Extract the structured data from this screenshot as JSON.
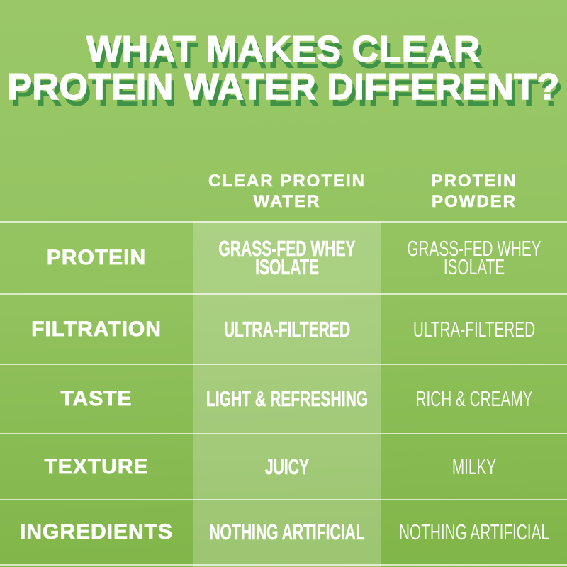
{
  "title": {
    "line1": "WHAT MAKES CLEAR",
    "line2": "PROTEIN WATER DIFFERENT?"
  },
  "table": {
    "column_headers": [
      {
        "line1": "CLEAR PROTEIN",
        "line2": "WATER"
      },
      {
        "line1": "PROTEIN",
        "line2": "POWDER"
      }
    ],
    "rows": [
      {
        "attribute": "PROTEIN",
        "clear_protein_water": "GRASS-FED WHEY ISOLATE",
        "protein_powder": "GRASS-FED WHEY ISOLATE"
      },
      {
        "attribute": "FILTRATION",
        "clear_protein_water": "ULTRA-FILTERED",
        "protein_powder": "ULTRA-FILTERED"
      },
      {
        "attribute": "TASTE",
        "clear_protein_water": "LIGHT & REFRESHING",
        "protein_powder": "RICH & CREAMY"
      },
      {
        "attribute": "TEXTURE",
        "clear_protein_water": "JUICY",
        "protein_powder": "MILKY"
      },
      {
        "attribute": "INGREDIENTS",
        "clear_protein_water": "NOTHING ARTIFICIAL",
        "protein_powder": "NOTHING ARTIFICIAL"
      }
    ]
  },
  "colors": {
    "bg-top": "#9AC868",
    "bg-bottom": "#80B549",
    "title-shadow": "#3E9347",
    "highlight": "rgba(255,255,255,0.22)",
    "divider": "rgba(255,255,255,0.68)",
    "text": "#FFFFFF"
  },
  "chart_data": {
    "type": "table",
    "title": "WHAT MAKES CLEAR PROTEIN WATER DIFFERENT?",
    "columns": [
      "",
      "CLEAR PROTEIN WATER",
      "PROTEIN POWDER"
    ],
    "rows": [
      [
        "PROTEIN",
        "GRASS-FED WHEY ISOLATE",
        "GRASS-FED WHEY ISOLATE"
      ],
      [
        "FILTRATION",
        "ULTRA-FILTERED",
        "ULTRA-FILTERED"
      ],
      [
        "TASTE",
        "LIGHT & REFRESHING",
        "RICH & CREAMY"
      ],
      [
        "TEXTURE",
        "JUICY",
        "MILKY"
      ],
      [
        "INGREDIENTS",
        "NOTHING ARTIFICIAL",
        "NOTHING ARTIFICIAL"
      ]
    ],
    "highlighted_column": "CLEAR PROTEIN WATER",
    "layout": {
      "grid": "horizontal-dividers-only",
      "legend": "none"
    }
  }
}
